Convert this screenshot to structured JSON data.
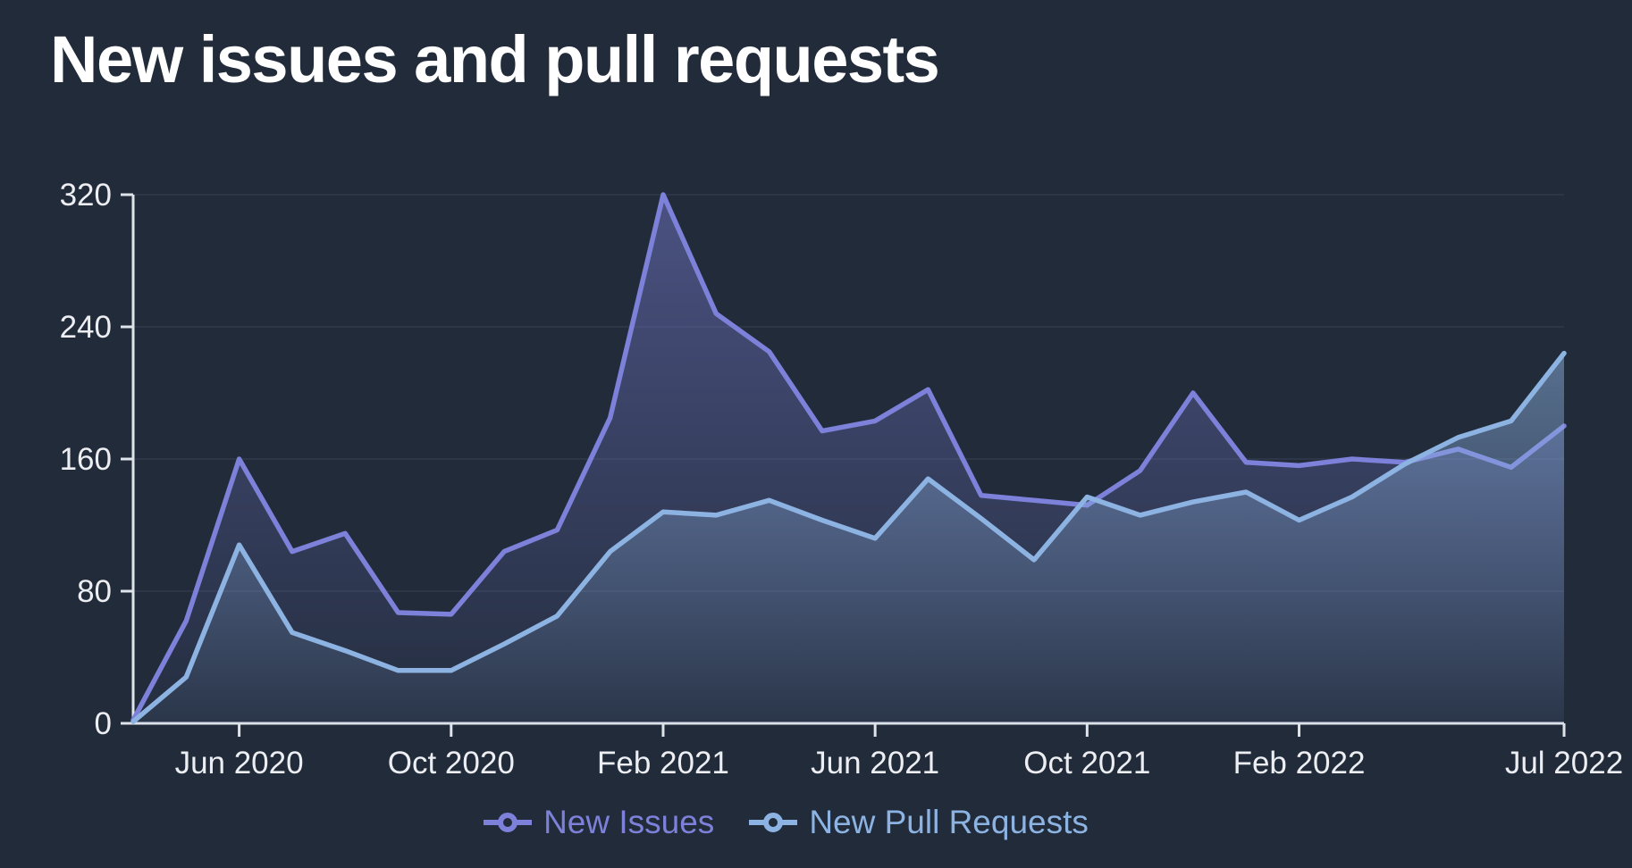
{
  "page": {
    "background_color": "#212b3a"
  },
  "chart_data": {
    "type": "area",
    "title": "New issues and pull requests",
    "x": [
      "Apr 2020",
      "May 2020",
      "Jun 2020",
      "Jul 2020",
      "Aug 2020",
      "Sep 2020",
      "Oct 2020",
      "Nov 2020",
      "Dec 2020",
      "Jan 2021",
      "Feb 2021",
      "Mar 2021",
      "Apr 2021",
      "May 2021",
      "Jun 2021",
      "Jul 2021",
      "Aug 2021",
      "Sep 2021",
      "Oct 2021",
      "Nov 2021",
      "Dec 2021",
      "Jan 2022",
      "Feb 2022",
      "Mar 2022",
      "Apr 2022",
      "May 2022",
      "Jun 2022",
      "Jul 2022"
    ],
    "series": [
      {
        "name": "New Issues",
        "color": "#7d81d9",
        "values": [
          2,
          62,
          160,
          104,
          115,
          67,
          66,
          104,
          117,
          185,
          320,
          248,
          225,
          177,
          183,
          202,
          138,
          135,
          132,
          153,
          200,
          158,
          156,
          160,
          158,
          166,
          155,
          180
        ]
      },
      {
        "name": "New Pull Requests",
        "color": "#8db3e2",
        "values": [
          1,
          28,
          108,
          55,
          44,
          32,
          32,
          48,
          65,
          104,
          128,
          126,
          135,
          123,
          112,
          148,
          124,
          99,
          137,
          126,
          134,
          140,
          123,
          137,
          157,
          173,
          183,
          224
        ]
      }
    ],
    "xlabel": "",
    "ylabel": "",
    "ylim": [
      0,
      320
    ],
    "y_ticks": [
      0,
      80,
      160,
      240,
      320
    ],
    "x_tick_labels": [
      "Jun 2020",
      "Oct 2020",
      "Feb 2021",
      "Jun 2021",
      "Oct 2021",
      "Feb 2022",
      "Jul 2022"
    ],
    "x_tick_indices": [
      2,
      6,
      10,
      14,
      18,
      22,
      27
    ],
    "grid": true,
    "legend_position": "bottom"
  },
  "legend": {
    "items": [
      {
        "label": "New Issues",
        "color": "#7d81d9"
      },
      {
        "label": "New Pull Requests",
        "color": "#8db3e2"
      }
    ]
  },
  "axis_style": {
    "axis_line_color": "#dfe4ea",
    "tick_label_color": "#eceef2",
    "grid_line_color": "#2c3646"
  }
}
